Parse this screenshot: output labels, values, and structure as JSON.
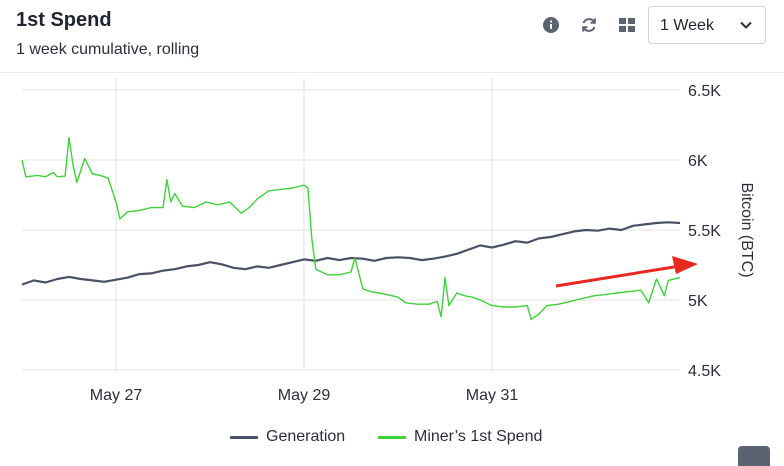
{
  "header": {
    "title": "1st Spend",
    "subtitle": "1 week cumulative, rolling",
    "info_icon": "info-icon",
    "refresh_icon": "refresh-icon",
    "grid_icon": "grid-icon"
  },
  "period_select": {
    "value": "1 Week"
  },
  "colors": {
    "generation": "#4a5167",
    "spend": "#3fd13a",
    "grid": "#e3e3e3",
    "arrow": "#e8281e"
  },
  "legend": [
    {
      "label": "Generation"
    },
    {
      "label": "Miner’s 1st Spend"
    }
  ],
  "chart_data": {
    "type": "line",
    "xlabel": "",
    "ylabel": "Bitcoin (BTC)",
    "x_tick_labels": [
      "May 27",
      "May 29",
      "May 31"
    ],
    "x_range": [
      "2019-05-26T00:00",
      "2019-06-02T00:00"
    ],
    "x_ticks": [
      "2019-05-27T00:00",
      "2019-05-29T00:00",
      "2019-05-31T00:00"
    ],
    "y_ticks": [
      4500,
      5000,
      5500,
      6000,
      6500
    ],
    "y_tick_labels": [
      "4.5K",
      "5K",
      "5.5K",
      "6K",
      "6.5K"
    ],
    "ylim": [
      4500,
      6500
    ],
    "y_axis_side": "right",
    "grid": true,
    "legend_position": "bottom",
    "annotation": "red arrow pointing to the right edge near 5.2K",
    "series": [
      {
        "name": "Generation",
        "points": [
          [
            "2019-05-26T00:00",
            5110
          ],
          [
            "2019-05-26T03:00",
            5140
          ],
          [
            "2019-05-26T06:00",
            5125
          ],
          [
            "2019-05-26T09:00",
            5150
          ],
          [
            "2019-05-26T12:00",
            5165
          ],
          [
            "2019-05-26T15:00",
            5150
          ],
          [
            "2019-05-26T18:00",
            5140
          ],
          [
            "2019-05-26T21:00",
            5130
          ],
          [
            "2019-05-27T00:00",
            5145
          ],
          [
            "2019-05-27T03:00",
            5160
          ],
          [
            "2019-05-27T06:00",
            5185
          ],
          [
            "2019-05-27T09:00",
            5190
          ],
          [
            "2019-05-27T12:00",
            5210
          ],
          [
            "2019-05-27T15:00",
            5220
          ],
          [
            "2019-05-27T18:00",
            5240
          ],
          [
            "2019-05-27T21:00",
            5250
          ],
          [
            "2019-05-28T00:00",
            5270
          ],
          [
            "2019-05-28T03:00",
            5255
          ],
          [
            "2019-05-28T06:00",
            5230
          ],
          [
            "2019-05-28T09:00",
            5220
          ],
          [
            "2019-05-28T12:00",
            5240
          ],
          [
            "2019-05-28T15:00",
            5230
          ],
          [
            "2019-05-28T18:00",
            5250
          ],
          [
            "2019-05-28T21:00",
            5270
          ],
          [
            "2019-05-29T00:00",
            5290
          ],
          [
            "2019-05-29T03:00",
            5280
          ],
          [
            "2019-05-29T06:00",
            5300
          ],
          [
            "2019-05-29T09:00",
            5285
          ],
          [
            "2019-05-29T12:00",
            5300
          ],
          [
            "2019-05-29T15:00",
            5295
          ],
          [
            "2019-05-29T18:00",
            5280
          ],
          [
            "2019-05-29T21:00",
            5300
          ],
          [
            "2019-05-30T00:00",
            5305
          ],
          [
            "2019-05-30T03:00",
            5300
          ],
          [
            "2019-05-30T06:00",
            5285
          ],
          [
            "2019-05-30T09:00",
            5295
          ],
          [
            "2019-05-30T12:00",
            5310
          ],
          [
            "2019-05-30T15:00",
            5330
          ],
          [
            "2019-05-30T18:00",
            5360
          ],
          [
            "2019-05-30T21:00",
            5390
          ],
          [
            "2019-05-31T00:00",
            5375
          ],
          [
            "2019-05-31T03:00",
            5395
          ],
          [
            "2019-05-31T06:00",
            5420
          ],
          [
            "2019-05-31T09:00",
            5410
          ],
          [
            "2019-05-31T12:00",
            5440
          ],
          [
            "2019-05-31T15:00",
            5450
          ],
          [
            "2019-05-31T18:00",
            5470
          ],
          [
            "2019-05-31T21:00",
            5490
          ],
          [
            "2019-06-01T00:00",
            5500
          ],
          [
            "2019-06-01T03:00",
            5495
          ],
          [
            "2019-06-01T06:00",
            5510
          ],
          [
            "2019-06-01T09:00",
            5500
          ],
          [
            "2019-06-01T12:00",
            5530
          ],
          [
            "2019-06-01T15:00",
            5540
          ],
          [
            "2019-06-01T18:00",
            5550
          ],
          [
            "2019-06-01T21:00",
            5555
          ],
          [
            "2019-06-02T00:00",
            5550
          ]
        ]
      },
      {
        "name": "Miner’s 1st Spend",
        "points": [
          [
            "2019-05-26T00:00",
            6000
          ],
          [
            "2019-05-26T01:00",
            5880
          ],
          [
            "2019-05-26T04:00",
            5890
          ],
          [
            "2019-05-26T06:00",
            5880
          ],
          [
            "2019-05-26T08:00",
            5910
          ],
          [
            "2019-05-26T09:00",
            5880
          ],
          [
            "2019-05-26T11:00",
            5885
          ],
          [
            "2019-05-26T12:00",
            6160
          ],
          [
            "2019-05-26T13:00",
            5970
          ],
          [
            "2019-05-26T14:00",
            5840
          ],
          [
            "2019-05-26T16:00",
            6010
          ],
          [
            "2019-05-26T18:00",
            5900
          ],
          [
            "2019-05-26T20:00",
            5890
          ],
          [
            "2019-05-26T22:00",
            5870
          ],
          [
            "2019-05-27T00:00",
            5700
          ],
          [
            "2019-05-27T01:00",
            5580
          ],
          [
            "2019-05-27T03:00",
            5630
          ],
          [
            "2019-05-27T06:00",
            5640
          ],
          [
            "2019-05-27T09:00",
            5660
          ],
          [
            "2019-05-27T12:00",
            5660
          ],
          [
            "2019-05-27T13:00",
            5860
          ],
          [
            "2019-05-27T14:00",
            5700
          ],
          [
            "2019-05-27T15:00",
            5760
          ],
          [
            "2019-05-27T17:00",
            5670
          ],
          [
            "2019-05-27T20:00",
            5660
          ],
          [
            "2019-05-27T23:00",
            5700
          ],
          [
            "2019-05-28T02:00",
            5680
          ],
          [
            "2019-05-28T05:00",
            5700
          ],
          [
            "2019-05-28T08:00",
            5620
          ],
          [
            "2019-05-28T10:00",
            5660
          ],
          [
            "2019-05-28T12:00",
            5720
          ],
          [
            "2019-05-28T15:00",
            5780
          ],
          [
            "2019-05-28T18:00",
            5790
          ],
          [
            "2019-05-28T21:00",
            5800
          ],
          [
            "2019-05-29T00:00",
            5820
          ],
          [
            "2019-05-29T01:00",
            5800
          ],
          [
            "2019-05-29T02:00",
            5440
          ],
          [
            "2019-05-29T03:00",
            5220
          ],
          [
            "2019-05-29T06:00",
            5180
          ],
          [
            "2019-05-29T09:00",
            5180
          ],
          [
            "2019-05-29T12:00",
            5200
          ],
          [
            "2019-05-29T13:00",
            5300
          ],
          [
            "2019-05-29T15:00",
            5080
          ],
          [
            "2019-05-29T17:00",
            5060
          ],
          [
            "2019-05-29T19:00",
            5050
          ],
          [
            "2019-05-29T21:00",
            5040
          ],
          [
            "2019-05-30T00:00",
            5020
          ],
          [
            "2019-05-30T02:00",
            4980
          ],
          [
            "2019-05-30T05:00",
            4970
          ],
          [
            "2019-05-30T08:00",
            4970
          ],
          [
            "2019-05-30T10:00",
            4990
          ],
          [
            "2019-05-30T11:00",
            4880
          ],
          [
            "2019-05-30T12:00",
            5160
          ],
          [
            "2019-05-30T13:00",
            4960
          ],
          [
            "2019-05-30T15:00",
            5050
          ],
          [
            "2019-05-30T17:00",
            5030
          ],
          [
            "2019-05-30T19:00",
            5020
          ],
          [
            "2019-05-30T21:00",
            5000
          ],
          [
            "2019-05-31T00:00",
            4960
          ],
          [
            "2019-05-31T03:00",
            4950
          ],
          [
            "2019-05-31T06:00",
            4950
          ],
          [
            "2019-05-31T09:00",
            4960
          ],
          [
            "2019-05-31T10:00",
            4860
          ],
          [
            "2019-05-31T12:00",
            4900
          ],
          [
            "2019-05-31T14:00",
            4960
          ],
          [
            "2019-05-31T17:00",
            4970
          ],
          [
            "2019-05-31T20:00",
            4990
          ],
          [
            "2019-05-31T23:00",
            5010
          ],
          [
            "2019-06-01T02:00",
            5030
          ],
          [
            "2019-06-01T05:00",
            5040
          ],
          [
            "2019-06-01T08:00",
            5050
          ],
          [
            "2019-06-01T11:00",
            5060
          ],
          [
            "2019-06-01T14:00",
            5070
          ],
          [
            "2019-06-01T16:00",
            4980
          ],
          [
            "2019-06-01T18:00",
            5150
          ],
          [
            "2019-06-01T20:00",
            5030
          ],
          [
            "2019-06-01T21:00",
            5140
          ],
          [
            "2019-06-02T00:00",
            5160
          ]
        ]
      }
    ]
  }
}
